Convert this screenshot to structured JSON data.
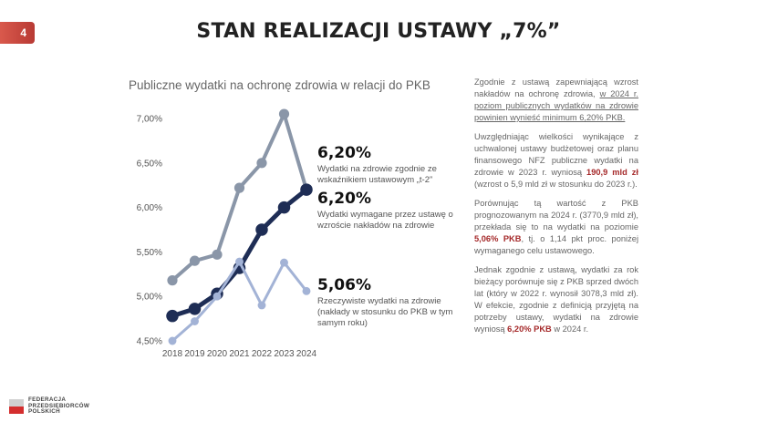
{
  "page_number": "4",
  "slide_title": "STAN REALIZACJI USTAWY „7%”",
  "chart_data": {
    "type": "line",
    "title": "Publiczne wydatki na ochronę zdrowia w relacji do PKB",
    "xlabel": "",
    "ylabel": "",
    "x": [
      "2018",
      "2019",
      "2020",
      "2021",
      "2022",
      "2023",
      "2024"
    ],
    "ylim": [
      4.5,
      7.0
    ],
    "yticks": [
      "4,50%",
      "5,00%",
      "5,50%",
      "6,00%",
      "6,50%",
      "7,00%"
    ],
    "grid": false,
    "series": [
      {
        "values": [
          5.18,
          5.4,
          5.47,
          6.22,
          6.5,
          7.05,
          6.2
        ],
        "color": "#8a96a8",
        "width": 4
      },
      {
        "values": [
          4.78,
          4.86,
          5.03,
          5.32,
          5.75,
          6.0,
          6.2
        ],
        "color": "#1e2d55",
        "width": 5
      },
      {
        "values": [
          4.5,
          4.72,
          5.0,
          5.39,
          4.9,
          5.38,
          5.06
        ],
        "color": "#a3b3d6",
        "width": 3
      }
    ]
  },
  "annotations": [
    {
      "value": "6,20%",
      "text": "Wydatki na zdrowie zgodnie ze wskaźnikiem ustawowym „t-2”"
    },
    {
      "value": "6,20%",
      "text": "Wydatki wymagane przez ustawę o wzroście nakładów na zdrowie"
    },
    {
      "value": "5,06%",
      "text": "Rzeczywiste wydatki na zdrowie (nakłady w stosunku do PKB w tym samym roku)"
    }
  ],
  "side": {
    "p1_a": "Zgodnie z ustawą zapewniającą wzrost nakładów na ochronę zdrowia, ",
    "p1_b": "w 2024 r. poziom publicznych wydatków na zdrowie powinien wynieść minimum 6,20% PKB.",
    "p2_a": "Uwzględniając wielkości wynikające z uchwalonej ustawy budżetowej oraz planu finansowego NFZ publiczne wydatki na zdrowie w 2023 r. wyniosą ",
    "p2_hl": "190,9 mld zł",
    "p2_b": " (wzrost o 5,9 mld zł w stosunku do 2023 r.).",
    "p3_a": "Porównując tą wartość z PKB prognozowanym na 2024 r. (3770,9 mld zł), przekłada się to na wydatki na poziomie ",
    "p3_hl": "5,06% PKB",
    "p3_b": ", tj. o 1,14 pkt proc. poniżej wymaganego celu ustawowego.",
    "p4_a": "Jednak zgodnie z ustawą, wydatki za rok bieżący porównuje się z PKB sprzed dwóch lat (który w 2022 r. wynosił 3078,3 mld zł). W efekcie, zgodnie z definicją przyjętą na potrzeby ustawy, wydatki na zdrowie wyniosą ",
    "p4_hl": "6,20% PKB",
    "p4_b": " w 2024 r."
  },
  "logo": {
    "line1": "FEDERACJA",
    "line2": "PRZEDSIĘBIORCÓW",
    "line3": "POLSKICH"
  },
  "colors": {
    "accent_red": "#a5292a",
    "badge": "#c8473f"
  }
}
